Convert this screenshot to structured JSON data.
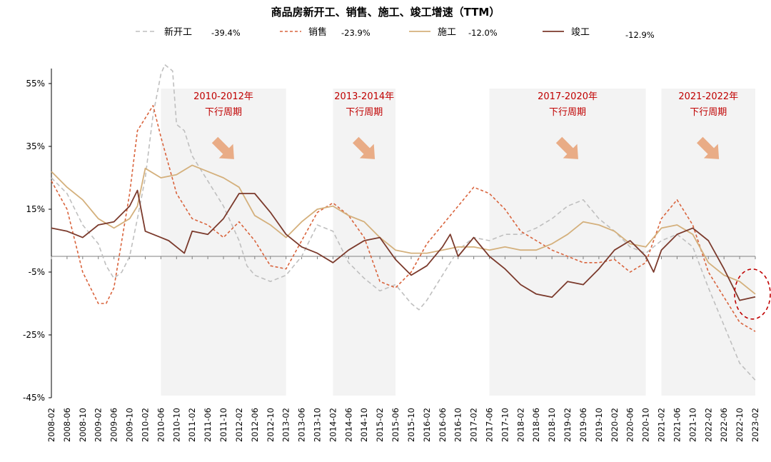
{
  "chart_data": {
    "type": "line",
    "title": "商品房新开工、销售、施工、竣工增速（TTM）",
    "ylim": [
      -45,
      60
    ],
    "yticks": [
      "55%",
      "35%",
      "15%",
      "-5%",
      "-25%",
      "-45%"
    ],
    "ytick_values": [
      55,
      35,
      15,
      -5,
      -25,
      -45
    ],
    "zero_line": 0,
    "grid": false,
    "legend_position": "top",
    "start": "2008-02",
    "end": "2023-02",
    "xticks": [
      "2008-02",
      "2008-06",
      "2008-10",
      "2009-02",
      "2009-06",
      "2009-10",
      "2010-02",
      "2010-06",
      "2010-10",
      "2011-02",
      "2011-06",
      "2011-10",
      "2012-02",
      "2012-06",
      "2012-10",
      "2013-02",
      "2013-06",
      "2013-10",
      "2014-02",
      "2014-06",
      "2014-10",
      "2015-02",
      "2015-06",
      "2015-10",
      "2016-02",
      "2016-06",
      "2016-10",
      "2017-02",
      "2017-06",
      "2017-10",
      "2018-02",
      "2018-06",
      "2018-10",
      "2019-02",
      "2019-06",
      "2019-10",
      "2020-02",
      "2020-06",
      "2020-10",
      "2021-02",
      "2021-06",
      "2021-10",
      "2022-02",
      "2022-06",
      "2022-10",
      "2023-02"
    ],
    "series": [
      {
        "name": "新开工",
        "latest": "-39.4%",
        "color": "#bfbfbf",
        "dash": "6,4",
        "width": 1.6,
        "points": [
          [
            "2008-02",
            25
          ],
          [
            "2008-06",
            20
          ],
          [
            "2008-10",
            10
          ],
          [
            "2009-02",
            4
          ],
          [
            "2009-04",
            -3
          ],
          [
            "2009-06",
            -7
          ],
          [
            "2009-08",
            -5
          ],
          [
            "2009-10",
            0
          ],
          [
            "2009-12",
            12
          ],
          [
            "2010-02",
            25
          ],
          [
            "2010-04",
            45
          ],
          [
            "2010-06",
            58
          ],
          [
            "2010-07",
            61
          ],
          [
            "2010-09",
            59
          ],
          [
            "2010-10",
            42
          ],
          [
            "2010-12",
            40
          ],
          [
            "2011-02",
            32
          ],
          [
            "2011-06",
            24
          ],
          [
            "2011-10",
            16
          ],
          [
            "2012-02",
            5
          ],
          [
            "2012-04",
            -3
          ],
          [
            "2012-06",
            -6
          ],
          [
            "2012-08",
            -7
          ],
          [
            "2012-10",
            -8
          ],
          [
            "2013-02",
            -6
          ],
          [
            "2013-06",
            0
          ],
          [
            "2013-10",
            10
          ],
          [
            "2014-02",
            8
          ],
          [
            "2014-06",
            -2
          ],
          [
            "2014-10",
            -7
          ],
          [
            "2015-02",
            -11
          ],
          [
            "2015-06",
            -9
          ],
          [
            "2015-10",
            -15
          ],
          [
            "2015-12",
            -17
          ],
          [
            "2016-02",
            -14
          ],
          [
            "2016-06",
            -6
          ],
          [
            "2016-10",
            2
          ],
          [
            "2017-02",
            6
          ],
          [
            "2017-06",
            5
          ],
          [
            "2017-10",
            7
          ],
          [
            "2018-02",
            7
          ],
          [
            "2018-06",
            9
          ],
          [
            "2018-10",
            12
          ],
          [
            "2019-02",
            16
          ],
          [
            "2019-06",
            18
          ],
          [
            "2019-10",
            12
          ],
          [
            "2020-02",
            8
          ],
          [
            "2020-06",
            3
          ],
          [
            "2020-10",
            1
          ],
          [
            "2021-02",
            5
          ],
          [
            "2021-06",
            7
          ],
          [
            "2021-10",
            3
          ],
          [
            "2022-02",
            -10
          ],
          [
            "2022-06",
            -22
          ],
          [
            "2022-10",
            -34
          ],
          [
            "2023-02",
            -39.4
          ]
        ]
      },
      {
        "name": "销售",
        "latest": "-23.9%",
        "color": "#d9643d",
        "dash": "4,3",
        "width": 1.6,
        "points": [
          [
            "2008-02",
            24
          ],
          [
            "2008-06",
            15
          ],
          [
            "2008-10",
            -5
          ],
          [
            "2009-02",
            -15
          ],
          [
            "2009-04",
            -15
          ],
          [
            "2009-06",
            -10
          ],
          [
            "2009-08",
            5
          ],
          [
            "2009-10",
            20
          ],
          [
            "2009-12",
            40
          ],
          [
            "2010-02",
            44
          ],
          [
            "2010-04",
            48
          ],
          [
            "2010-06",
            38
          ],
          [
            "2010-10",
            20
          ],
          [
            "2011-02",
            12
          ],
          [
            "2011-06",
            10
          ],
          [
            "2011-10",
            6
          ],
          [
            "2012-02",
            11
          ],
          [
            "2012-06",
            5
          ],
          [
            "2012-10",
            -3
          ],
          [
            "2013-02",
            -4
          ],
          [
            "2013-06",
            5
          ],
          [
            "2013-10",
            14
          ],
          [
            "2014-02",
            17
          ],
          [
            "2014-06",
            13
          ],
          [
            "2014-10",
            6
          ],
          [
            "2015-02",
            -8
          ],
          [
            "2015-06",
            -10
          ],
          [
            "2015-10",
            -5
          ],
          [
            "2016-02",
            4
          ],
          [
            "2016-06",
            10
          ],
          [
            "2016-10",
            16
          ],
          [
            "2017-02",
            22
          ],
          [
            "2017-06",
            20
          ],
          [
            "2017-10",
            15
          ],
          [
            "2018-02",
            8
          ],
          [
            "2018-06",
            5
          ],
          [
            "2018-10",
            2
          ],
          [
            "2019-02",
            0
          ],
          [
            "2019-06",
            -2
          ],
          [
            "2019-10",
            -2
          ],
          [
            "2020-02",
            -1
          ],
          [
            "2020-06",
            -5
          ],
          [
            "2020-10",
            -2
          ],
          [
            "2021-02",
            12
          ],
          [
            "2021-06",
            18
          ],
          [
            "2021-10",
            10
          ],
          [
            "2022-02",
            -5
          ],
          [
            "2022-06",
            -13
          ],
          [
            "2022-10",
            -21
          ],
          [
            "2023-02",
            -23.9
          ]
        ]
      },
      {
        "name": "施工",
        "latest": "-12.0%",
        "color": "#d4b07c",
        "dash": "",
        "width": 1.8,
        "points": [
          [
            "2008-02",
            27
          ],
          [
            "2008-06",
            22
          ],
          [
            "2008-10",
            18
          ],
          [
            "2009-02",
            12
          ],
          [
            "2009-06",
            9
          ],
          [
            "2009-10",
            12
          ],
          [
            "2009-12",
            16
          ],
          [
            "2010-02",
            28
          ],
          [
            "2010-06",
            25
          ],
          [
            "2010-10",
            26
          ],
          [
            "2011-02",
            29
          ],
          [
            "2011-06",
            27
          ],
          [
            "2011-10",
            25
          ],
          [
            "2012-02",
            22
          ],
          [
            "2012-06",
            13
          ],
          [
            "2012-10",
            10
          ],
          [
            "2013-02",
            6
          ],
          [
            "2013-06",
            11
          ],
          [
            "2013-10",
            15
          ],
          [
            "2014-02",
            16
          ],
          [
            "2014-06",
            13
          ],
          [
            "2014-10",
            11
          ],
          [
            "2015-02",
            6
          ],
          [
            "2015-06",
            2
          ],
          [
            "2015-10",
            1
          ],
          [
            "2016-02",
            1
          ],
          [
            "2016-06",
            2
          ],
          [
            "2016-10",
            3
          ],
          [
            "2017-02",
            3
          ],
          [
            "2017-06",
            2
          ],
          [
            "2017-10",
            3
          ],
          [
            "2018-02",
            2
          ],
          [
            "2018-06",
            2
          ],
          [
            "2018-10",
            4
          ],
          [
            "2019-02",
            7
          ],
          [
            "2019-06",
            11
          ],
          [
            "2019-10",
            10
          ],
          [
            "2020-02",
            8
          ],
          [
            "2020-06",
            4
          ],
          [
            "2020-10",
            3
          ],
          [
            "2021-02",
            9
          ],
          [
            "2021-06",
            10
          ],
          [
            "2021-10",
            7
          ],
          [
            "2022-02",
            -2
          ],
          [
            "2022-06",
            -6
          ],
          [
            "2022-10",
            -8
          ],
          [
            "2023-02",
            -12
          ]
        ]
      },
      {
        "name": "竣工",
        "latest": "-12.9%",
        "color": "#7b3a2c",
        "dash": "",
        "width": 1.8,
        "points": [
          [
            "2008-02",
            9
          ],
          [
            "2008-06",
            8
          ],
          [
            "2008-10",
            6
          ],
          [
            "2009-02",
            10
          ],
          [
            "2009-06",
            11
          ],
          [
            "2009-10",
            16
          ],
          [
            "2009-12",
            21
          ],
          [
            "2010-02",
            8
          ],
          [
            "2010-06",
            6
          ],
          [
            "2010-08",
            5
          ],
          [
            "2010-10",
            3
          ],
          [
            "2010-12",
            1
          ],
          [
            "2011-02",
            8
          ],
          [
            "2011-06",
            7
          ],
          [
            "2011-10",
            12
          ],
          [
            "2012-02",
            20
          ],
          [
            "2012-06",
            20
          ],
          [
            "2012-10",
            14
          ],
          [
            "2013-02",
            7
          ],
          [
            "2013-06",
            3
          ],
          [
            "2013-10",
            1
          ],
          [
            "2014-02",
            -2
          ],
          [
            "2014-06",
            2
          ],
          [
            "2014-10",
            5
          ],
          [
            "2015-02",
            6
          ],
          [
            "2015-06",
            -1
          ],
          [
            "2015-10",
            -6
          ],
          [
            "2016-02",
            -3
          ],
          [
            "2016-06",
            3
          ],
          [
            "2016-08",
            7
          ],
          [
            "2016-10",
            0
          ],
          [
            "2017-02",
            6
          ],
          [
            "2017-06",
            0
          ],
          [
            "2017-10",
            -4
          ],
          [
            "2018-02",
            -9
          ],
          [
            "2018-06",
            -12
          ],
          [
            "2018-10",
            -13
          ],
          [
            "2019-02",
            -8
          ],
          [
            "2019-06",
            -9
          ],
          [
            "2019-10",
            -4
          ],
          [
            "2020-02",
            2
          ],
          [
            "2020-06",
            5
          ],
          [
            "2020-10",
            0
          ],
          [
            "2020-12",
            -5
          ],
          [
            "2021-02",
            2
          ],
          [
            "2021-06",
            7
          ],
          [
            "2021-10",
            9
          ],
          [
            "2022-02",
            5
          ],
          [
            "2022-06",
            -4
          ],
          [
            "2022-10",
            -14
          ],
          [
            "2023-02",
            -12.9
          ]
        ]
      }
    ],
    "shaded_periods": [
      {
        "start": "2010-06",
        "end": "2013-02",
        "label": "2010-2012年",
        "sublabel": "下行周期"
      },
      {
        "start": "2014-02",
        "end": "2015-06",
        "label": "2013-2014年",
        "sublabel": "下行周期"
      },
      {
        "start": "2017-06",
        "end": "2020-10",
        "label": "2017-2020年",
        "sublabel": "下行周期"
      },
      {
        "start": "2021-02",
        "end": "2023-02",
        "label": "2021-2022年",
        "sublabel": "下行周期"
      }
    ],
    "highlight_marker": {
      "type": "dashed-ellipse",
      "at": "2023-02",
      "value": -12,
      "color": "#c00000"
    }
  }
}
